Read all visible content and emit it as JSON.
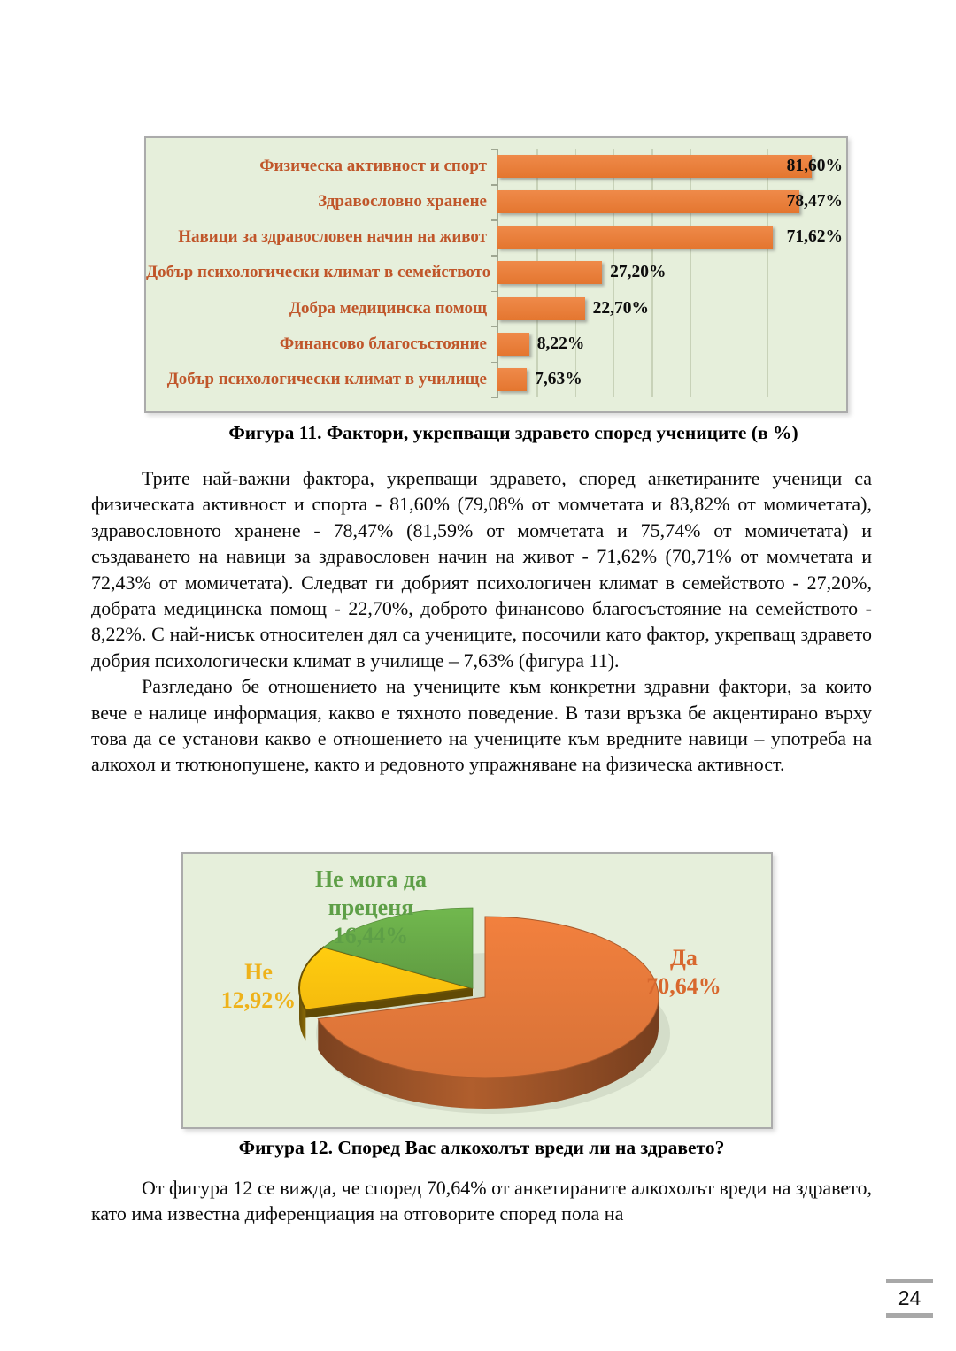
{
  "page": {
    "number": "24"
  },
  "figure11": {
    "caption": "Фигура 11. Фактори, укрепващи здравето според учениците (в %)"
  },
  "figure12": {
    "caption": "Фигура 12. Според Вас алкохолът вреди ли на здравето?"
  },
  "paragraphs": {
    "p1": "Трите най-важни фактора, укрепващи здравето, според анкетираните ученици са физическата активност и спорта - 81,60% (79,08% от момчетата и 83,82% от момичетата), здравословното хранене - 78,47% (81,59% от момчетата и 75,74% от момичетата) и създаването на навици за здравословен начин на живот - 71,62% (70,71% от момчетата и 72,43% от момичетата). Следват ги добрият психологичен климат в семейството - 27,20%, добрата медицинска помощ - 22,70%, доброто финансово благосъстояние на семейството - 8,22%. С най-нисък относителен дял са учениците, посочили като фактор, укрепващ здравето добрия психологически климат в училище – 7,63% (фигура 11).",
    "p2": "Разгледано бе отношението на учениците към конкретни здравни фактори, за които вече е налице информация, какво е тяхното поведение. В тази връзка бе акцентирано върху това да се установи какво е отношението на учениците към вредните навици – употреба на алкохол и тютюнопушене, както и редовното упражняване на физическа активност.",
    "p3": "От фигура 12 се вижда, че според 70,64% от анкетираните алкохолът вреди на здравето, като има известна диференциация на отговорите според пола на"
  },
  "chart_data": [
    {
      "type": "bar",
      "orientation": "horizontal",
      "title": "Фигура 11. Фактори, укрепващи здравето според учениците (в %)",
      "categories": [
        "Физическа активност и спорт",
        "Здравословно хранене",
        "Навици за здравословен начин на живот",
        "Добър психологически климат в семейството",
        "Добра медицинска помощ",
        "Финансово благосъстояние",
        "Добър психологически климат в училище"
      ],
      "values": [
        81.6,
        78.47,
        71.62,
        27.2,
        22.7,
        8.22,
        7.63
      ],
      "value_labels": [
        "81,60%",
        "78,47%",
        "71,62%",
        "27,20%",
        "22,70%",
        "8,22%",
        "7,63%"
      ],
      "xlim": [
        0,
        90
      ],
      "gridline_step": 10,
      "grid": true,
      "bar_color": "#E8793B",
      "category_label_color": "#C0562A",
      "value_label_color": "#0D0D0D",
      "background": "#E6EFDB"
    },
    {
      "type": "pie",
      "title": "Фигура 12. Според Вас алкохолът вреди ли на здравето?",
      "effect": "3d-exploded",
      "start_angle_deg": 0,
      "direction": "clockwise",
      "background": "#E6EFDB",
      "slices": [
        {
          "key": "yes",
          "label": "Да",
          "value": 70.64,
          "display": "70,64%",
          "color": "#E2783A",
          "label_color": "#D8682E"
        },
        {
          "key": "no",
          "label": "Не",
          "value": 12.92,
          "display": "12,92%",
          "color": "#FFC30E",
          "label_color": "#EEB21A"
        },
        {
          "key": "cant-judge",
          "label": "Не мога да преценя",
          "value": 16.44,
          "display": "16,44%",
          "color": "#67A747",
          "label_color": "#5E9F47"
        }
      ]
    }
  ]
}
